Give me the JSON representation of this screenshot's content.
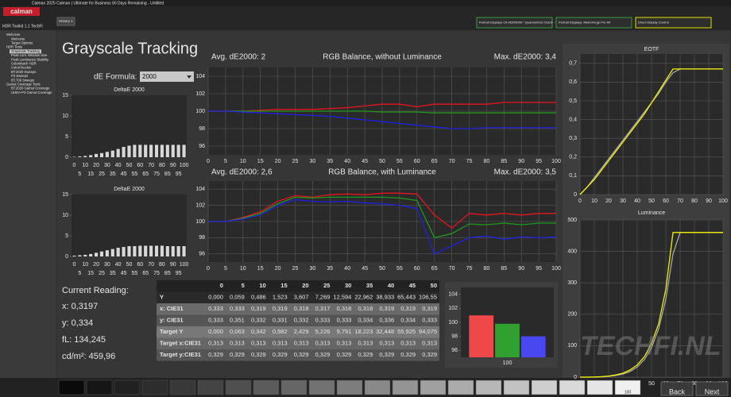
{
  "window_title": "Calman 2025 Calman | Ultimate for Business 60 Days Remaining - Untitled",
  "logo": "calman",
  "tab": "History 1",
  "devices": [
    "Portrait Displays C6 HDR5000 * QuantumDot OLED - 2023",
    "Portrait Displays: MetroForge Pro 4K",
    "Direct Display Control"
  ],
  "sidebar": {
    "title": "HDR Toolkit 1.1 TechFi",
    "items": [
      "Welcome",
      "Welcome",
      "Target Options",
      "HDR Tests",
      "Grayscale Tracking",
      "Peak Lum. Window Size",
      "Peak Luminance Stability",
      "ColorMatch HDR",
      "ColorChecker",
      "BT.2020 Sweeps",
      "P3 Sweeps",
      "BT.709 Sweeps",
      "Gamut Coverage Tests",
      "BT.2020 Gamut Coverage",
      "UHDA-P3 Gamut Coverage"
    ]
  },
  "page_title": "Grayscale Tracking",
  "formula_label": "dE Formula:",
  "formula_value": "2000",
  "current_reading": {
    "title": "Current Reading:",
    "lines": [
      "x: 0,3197",
      "y: 0,334",
      "fL: 134,245",
      "cd/m²: 459,96"
    ]
  },
  "table": {
    "header": [
      "0",
      "5",
      "10",
      "15",
      "20",
      "25",
      "30",
      "35",
      "40",
      "45",
      "50"
    ],
    "rows": [
      [
        "Y",
        "0,000",
        "0,059",
        "0,486",
        "1,523",
        "3,607",
        "7,269",
        "12,594",
        "22,962",
        "38,933",
        "65,443",
        "106,55"
      ],
      [
        "x: CIE31",
        "0,333",
        "0,333",
        "0,319",
        "0,319",
        "0,318",
        "0,317",
        "0,318",
        "0,318",
        "0,319",
        "0,319",
        "0,319"
      ],
      [
        "y: CIE31",
        "0,333",
        "0,351",
        "0,332",
        "0,331",
        "0,332",
        "0,333",
        "0,333",
        "0,334",
        "0,336",
        "0,334",
        "0,333"
      ],
      [
        "Target Y",
        "0,000",
        "0,063",
        "0,342",
        "0,982",
        "2,429",
        "5,226",
        "9,791",
        "18,223",
        "32,448",
        "55,925",
        "94,075"
      ],
      [
        "Target x:CIE31",
        "0,313",
        "0,313",
        "0,313",
        "0,313",
        "0,313",
        "0,313",
        "0,313",
        "0,313",
        "0,313",
        "0,313",
        "0,313"
      ],
      [
        "Target y:CIE31",
        "0,329",
        "0,329",
        "0,329",
        "0,329",
        "0,329",
        "0,329",
        "0,329",
        "0,329",
        "0,329",
        "0,329",
        "0,329"
      ]
    ]
  },
  "swatch_label": "100",
  "buttons": [
    "Back",
    "Next"
  ],
  "watermark": "TECHFI.NL",
  "chart_data": [
    {
      "type": "bar",
      "title": "DeltaE 2000",
      "color": "#d8d8d8",
      "categories": [
        0,
        5,
        10,
        15,
        20,
        25,
        30,
        35,
        40,
        45,
        50,
        55,
        60,
        65,
        70,
        75,
        80,
        85,
        90,
        95,
        100
      ],
      "values": [
        0.1,
        0.2,
        0.3,
        0.5,
        0.8,
        1,
        1.3,
        1.6,
        2,
        2.5,
        2.8,
        3,
        3,
        3,
        3,
        3,
        3,
        3,
        3,
        3,
        3
      ],
      "ylim": [
        0,
        15
      ],
      "yticks": [
        0,
        5,
        10,
        15
      ],
      "grid": false
    },
    {
      "type": "bar",
      "title": "DeltaE 2000",
      "color": "#d8d8d8",
      "categories": [
        0,
        5,
        10,
        15,
        20,
        25,
        30,
        35,
        40,
        45,
        50,
        55,
        60,
        65,
        70,
        75,
        80,
        85,
        90,
        95,
        100
      ],
      "values": [
        0.2,
        0.3,
        0.4,
        0.6,
        0.9,
        1.2,
        1.5,
        1.8,
        2.1,
        2.3,
        2.5,
        2.5,
        2.6,
        2.6,
        2.6,
        2.6,
        2.6,
        2.5,
        2.5,
        2.5,
        2.5
      ],
      "ylim": [
        0,
        15
      ],
      "yticks": [
        0,
        5,
        10,
        15
      ],
      "grid": false
    },
    {
      "type": "line",
      "title": "RGB Balance, without Luminance",
      "annotations": [
        "Avg. dE2000: 2",
        "Max. dE2000: 3,4"
      ],
      "x": [
        0,
        5,
        10,
        15,
        20,
        25,
        30,
        35,
        40,
        45,
        50,
        55,
        60,
        65,
        70,
        75,
        80,
        85,
        90,
        95,
        100
      ],
      "series": [
        {
          "color": "#e8141e",
          "values": [
            100,
            100,
            100,
            100.1,
            100.2,
            100.2,
            100.2,
            100.3,
            100.4,
            100.6,
            100.8,
            100.8,
            100.5,
            100.8,
            100.8,
            100.8,
            100.8,
            101,
            101,
            101,
            101
          ]
        },
        {
          "color": "#1e9a1e",
          "values": [
            100,
            100,
            100,
            100,
            100,
            100,
            100,
            100,
            100,
            100,
            99.9,
            99.9,
            99.9,
            99.8,
            99.8,
            99.8,
            99.8,
            99.8,
            99.8,
            99.8,
            99.8
          ]
        },
        {
          "color": "#2020e6",
          "values": [
            100,
            100,
            99.9,
            99.8,
            99.7,
            99.6,
            99.5,
            99.4,
            99.2,
            99,
            98.8,
            98.6,
            98.4,
            98.2,
            98,
            98,
            98.1,
            98.1,
            98.1,
            98.1,
            98.1
          ]
        }
      ],
      "xlim": [
        0,
        100
      ],
      "xticks": [
        0,
        5,
        10,
        15,
        20,
        25,
        30,
        35,
        40,
        45,
        50,
        55,
        60,
        65,
        70,
        75,
        80,
        85,
        90,
        95,
        100
      ],
      "ylim": [
        95,
        105
      ],
      "yticks": [
        96,
        98,
        100,
        102,
        104
      ],
      "grid": true
    },
    {
      "type": "line",
      "title": "RGB Balance, with Luminance",
      "annotations": [
        "Avg. dE2000: 2,6",
        "Max. dE2000: 3,5"
      ],
      "x": [
        0,
        5,
        10,
        15,
        20,
        25,
        30,
        35,
        40,
        45,
        50,
        55,
        60,
        65,
        70,
        75,
        80,
        85,
        90,
        95,
        100
      ],
      "series": [
        {
          "color": "#e8141e",
          "values": [
            100,
            100,
            100.5,
            101.2,
            102.5,
            103.2,
            103,
            103.3,
            103.4,
            103.3,
            103.5,
            103.5,
            103.4,
            100.8,
            99.2,
            101,
            100.8,
            101,
            100.8,
            101,
            101
          ]
        },
        {
          "color": "#1e9a1e",
          "values": [
            100,
            100,
            100.4,
            101,
            102.2,
            103,
            102.9,
            103,
            103,
            103,
            103,
            102.9,
            102.6,
            98,
            98.5,
            99.7,
            99.6,
            99.8,
            99.6,
            99.8,
            99.8
          ]
        },
        {
          "color": "#2020e6",
          "values": [
            100,
            100,
            100.3,
            100.8,
            102,
            102.7,
            102.5,
            102.4,
            102.5,
            102.3,
            102.2,
            102,
            101.6,
            96,
            97,
            98,
            98.2,
            97.8,
            98.1,
            98,
            98.1
          ]
        }
      ],
      "xlim": [
        0,
        100
      ],
      "xticks": [
        0,
        5,
        10,
        15,
        20,
        25,
        30,
        35,
        40,
        45,
        50,
        55,
        60,
        65,
        70,
        75,
        80,
        85,
        90,
        95,
        100
      ],
      "ylim": [
        95,
        105
      ],
      "yticks": [
        96,
        98,
        100,
        102,
        104
      ],
      "grid": true
    },
    {
      "type": "line",
      "title": "EOTF",
      "x": [
        0,
        5,
        10,
        15,
        20,
        25,
        30,
        35,
        40,
        45,
        50,
        55,
        60,
        65,
        70,
        75,
        80,
        85,
        90,
        95,
        100
      ],
      "series": [
        {
          "color": "#a8a8a8",
          "values": [
            0,
            0.04,
            0.09,
            0.14,
            0.19,
            0.24,
            0.29,
            0.34,
            0.39,
            0.44,
            0.49,
            0.54,
            0.6,
            0.65,
            0.67,
            0.67,
            0.67,
            0.67,
            0.67,
            0.67,
            0.67
          ]
        },
        {
          "color": "#f2f200",
          "values": [
            0,
            0.04,
            0.08,
            0.13,
            0.18,
            0.23,
            0.28,
            0.33,
            0.38,
            0.43,
            0.49,
            0.55,
            0.61,
            0.67,
            0.67,
            0.67,
            0.67,
            0.67,
            0.67,
            0.67,
            0.67
          ]
        }
      ],
      "xlim": [
        0,
        100
      ],
      "xticks": [
        0,
        10,
        20,
        30,
        40,
        50,
        60,
        70,
        80,
        90,
        100
      ],
      "ylim": [
        0,
        0.75
      ],
      "yticks": [
        0,
        {
          "value": 0.1,
          "label": "0,1"
        },
        {
          "value": 0.2,
          "label": "0,2"
        },
        {
          "value": 0.3,
          "label": "0,3"
        },
        {
          "value": 0.4,
          "label": "0,4"
        },
        {
          "value": 0.5,
          "label": "0,5"
        },
        {
          "value": 0.6,
          "label": "0,6"
        },
        {
          "value": 0.7,
          "label": "0,7"
        }
      ],
      "grid": true
    },
    {
      "type": "line",
      "title": "Luminance",
      "x": [
        0,
        5,
        10,
        15,
        20,
        25,
        30,
        35,
        40,
        45,
        50,
        55,
        60,
        65,
        70,
        75,
        80,
        85,
        90,
        95,
        100
      ],
      "series": [
        {
          "color": "#a8a8a8",
          "values": [
            0,
            0.06,
            0.34,
            1,
            2.4,
            5.2,
            9.8,
            18,
            32,
            56,
            94,
            154,
            248,
            392,
            460,
            460,
            460,
            460,
            460,
            460,
            460
          ]
        },
        {
          "color": "#f2f200",
          "values": [
            0,
            0.06,
            0.49,
            1.5,
            3.6,
            7.3,
            12.6,
            23,
            39,
            65,
            107,
            170,
            280,
            460,
            460,
            460,
            460,
            460,
            460,
            460,
            460
          ]
        }
      ],
      "xlim": [
        0,
        100
      ],
      "xticks": [
        0,
        10,
        20,
        30,
        40,
        50,
        60,
        70,
        80,
        90,
        100
      ],
      "ylim": [
        0,
        500
      ],
      "yticks": [
        0,
        100,
        200,
        300,
        400,
        500
      ],
      "grid": true
    },
    {
      "type": "groupbar",
      "categories": [
        100
      ],
      "series": [
        {
          "color": "#f04848",
          "values": [
            101
          ]
        },
        {
          "color": "#30a030",
          "values": [
            99.8
          ]
        },
        {
          "color": "#4848f0",
          "values": [
            98
          ]
        }
      ],
      "ylim": [
        95,
        105
      ],
      "yticks": [
        96,
        98,
        100,
        102,
        104
      ],
      "grid": false
    }
  ]
}
